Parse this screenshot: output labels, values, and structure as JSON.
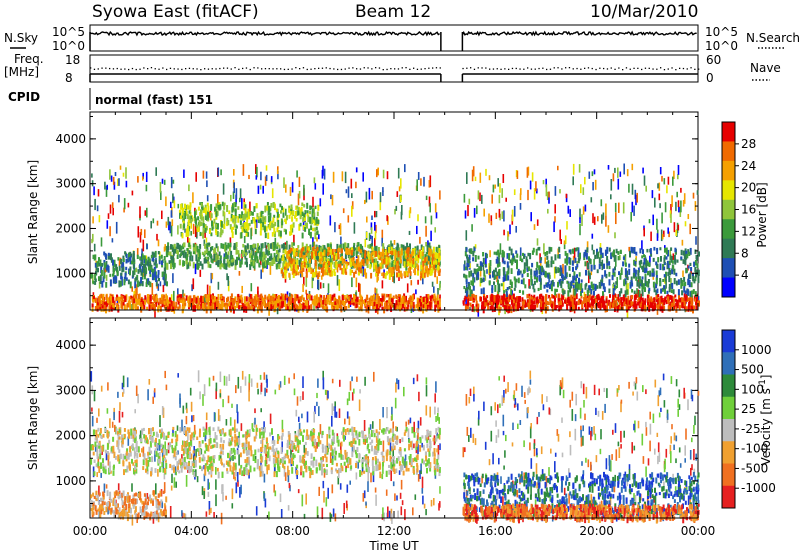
{
  "header": {
    "station": "Syowa East (fitACF)",
    "beam": "Beam 12",
    "date": "10/Mar/2010"
  },
  "strips": {
    "nsky_label": "N.Sky",
    "nsky_ticks": [
      "10^5",
      "10^0"
    ],
    "nsearch_label": "N.Search",
    "nsearch_ticks": [
      "10^5",
      "10^0"
    ],
    "freq_label": "Freq.",
    "freq_unit": "[MHz]",
    "freq_ticks": [
      "18",
      "8"
    ],
    "nave_label": "Nave",
    "nave_ticks": [
      "60",
      "0"
    ],
    "cpid_label": "CPID",
    "cpid_value": "normal (fast) 151"
  },
  "colors": {
    "power_scale": [
      "#0000ff",
      "#1e4fb4",
      "#2f7a55",
      "#3b9a3b",
      "#8fc53a",
      "#e6e600",
      "#f5a000",
      "#f06a00",
      "#e60000"
    ],
    "velocity_scale": [
      "#1a3bd6",
      "#2f6fb8",
      "#2d8a3a",
      "#6fcf3a",
      "#bdbdbd",
      "#f0a030",
      "#f07020",
      "#e62020"
    ]
  },
  "chart_data": [
    {
      "type": "heatmap",
      "name": "power",
      "xlabel": "Time UT",
      "ylabel": "Slant Range [km]",
      "x_ticks": [
        "00:00",
        "04:00",
        "08:00",
        "12:00",
        "16:00",
        "20:00",
        "00:00"
      ],
      "y_ticks": [
        "1000",
        "2000",
        "3000",
        "4000"
      ],
      "xlim": [
        0,
        24
      ],
      "ylim": [
        180,
        4600
      ],
      "colorbar_label": "Power [dB]",
      "colorbar_ticks": [
        "4",
        "8",
        "12",
        "16",
        "20",
        "24",
        "28"
      ],
      "data_gap_hours": [
        13.85,
        14.7
      ],
      "bands": [
        {
          "t0": 0.0,
          "t1": 14.0,
          "r0": 250,
          "r1": 550,
          "level": 7
        },
        {
          "t0": 0.0,
          "t1": 3.0,
          "r0": 800,
          "r1": 1500,
          "level": 2
        },
        {
          "t0": 3.0,
          "t1": 14.0,
          "r0": 1200,
          "r1": 1700,
          "level": 3
        },
        {
          "t0": 3.5,
          "t1": 9.0,
          "r0": 1900,
          "r1": 2600,
          "level": 4
        },
        {
          "t0": 7.5,
          "t1": 13.8,
          "r0": 1000,
          "r1": 1600,
          "level": 6
        },
        {
          "t0": 14.7,
          "t1": 24.0,
          "r0": 250,
          "r1": 550,
          "level": 8
        },
        {
          "t0": 14.7,
          "t1": 24.0,
          "r0": 600,
          "r1": 1600,
          "level": 2
        }
      ]
    },
    {
      "type": "heatmap",
      "name": "velocity",
      "xlabel": "Time UT",
      "ylabel": "Slant Range [km]",
      "x_ticks": [
        "00:00",
        "04:00",
        "08:00",
        "12:00",
        "16:00",
        "20:00",
        "00:00"
      ],
      "y_ticks": [
        "1000",
        "2000",
        "3000",
        "4000"
      ],
      "xlim": [
        0,
        24
      ],
      "ylim": [
        180,
        4600
      ],
      "colorbar_label": "Velocity [m s^-1]",
      "colorbar_ticks": [
        "1000",
        "500",
        "100",
        "25",
        "-25",
        "-100",
        "-500",
        "-1000"
      ],
      "data_gap_hours": [
        13.85,
        14.7
      ],
      "bands": [
        {
          "t0": 0.0,
          "t1": 13.8,
          "r0": 1200,
          "r1": 2200,
          "level": 4
        },
        {
          "t0": 0.0,
          "t1": 3.0,
          "r0": 250,
          "r1": 800,
          "level": 5
        },
        {
          "t0": 14.7,
          "t1": 24.0,
          "r0": 300,
          "r1": 1200,
          "level": 1
        },
        {
          "t0": 14.7,
          "t1": 24.0,
          "r0": 200,
          "r1": 500,
          "level": 6
        }
      ]
    }
  ]
}
